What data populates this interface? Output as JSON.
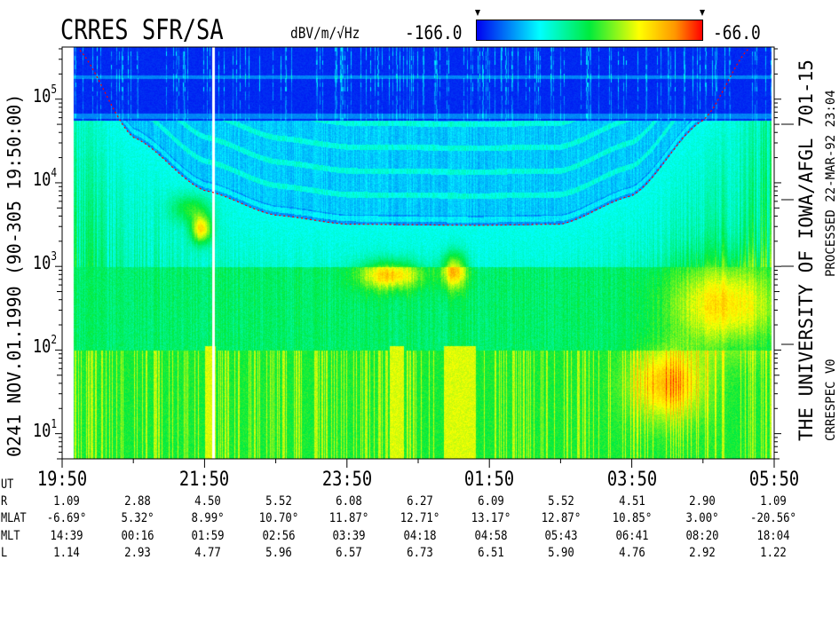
{
  "chart_data": {
    "type": "heatmap",
    "title": "CRRES SFR/SA",
    "colorbar": {
      "units": "dBV/m/√Hz",
      "min_label": "-166.0",
      "max_label": "-66.0",
      "range": [
        -166.0,
        -66.0
      ],
      "colors": [
        "#0000f0",
        "#00ffff",
        "#00eb3c",
        "#ffff00",
        "#ff9600",
        "#ff0000"
      ]
    },
    "y_axis": {
      "scale": "log",
      "range": [
        5,
        420000
      ],
      "ticks": [
        {
          "base": "10",
          "exp": "1",
          "value": 10
        },
        {
          "base": "10",
          "exp": "2",
          "value": 100
        },
        {
          "base": "10",
          "exp": "3",
          "value": 1000
        },
        {
          "base": "10",
          "exp": "4",
          "value": 10000
        },
        {
          "base": "10",
          "exp": "5",
          "value": 100000
        }
      ]
    },
    "x_axis": {
      "range": [
        "19:50",
        "05:50"
      ],
      "tick_labels": [
        "19:50",
        "21:50",
        "23:50",
        "01:50",
        "03:50",
        "05:50"
      ]
    },
    "overlay_curve": {
      "color": "#ff0000",
      "style": "dotted",
      "points": [
        [
          "20:02",
          420000
        ],
        [
          "20:50",
          35000
        ],
        [
          "21:50",
          8100
        ],
        [
          "22:50",
          4100
        ],
        [
          "23:50",
          3200
        ],
        [
          "01:40",
          3100
        ],
        [
          "02:50",
          3200
        ],
        [
          "03:50",
          7000
        ],
        [
          "04:50",
          56000
        ],
        [
          "05:30",
          420000
        ]
      ]
    },
    "left_label": "0241  NOV.01.1990  (90-305 19:50:00)",
    "right_label_main": "THE UNIVERSITY OF IOWA/AFGL 701-15",
    "right_label_processed": "PROCESSED 22-MAR-92  23:04",
    "right_label_version": "CRRESPEC V0",
    "ephemeris": {
      "ut_label": "UT",
      "rows": [
        {
          "label": "R",
          "values": [
            "1.09",
            "2.88",
            "4.50",
            "5.52",
            "6.08",
            "6.27",
            "6.09",
            "5.52",
            "4.51",
            "2.90",
            "1.09"
          ]
        },
        {
          "label": "MLAT",
          "values": [
            "-6.69°",
            "5.32°",
            "8.99°",
            "10.70°",
            "11.87°",
            "12.71°",
            "13.17°",
            "12.87°",
            "10.85°",
            "3.00°",
            "-20.56°"
          ]
        },
        {
          "label": "MLT",
          "values": [
            "14:39",
            "00:16",
            "01:59",
            "02:56",
            "03:39",
            "04:18",
            "04:58",
            "05:43",
            "06:41",
            "08:20",
            "18:04"
          ]
        },
        {
          "label": "L",
          "values": [
            "1.14",
            "2.93",
            "4.77",
            "5.96",
            "6.57",
            "6.73",
            "6.51",
            "5.90",
            "4.76",
            "2.92",
            "1.22"
          ]
        }
      ]
    }
  }
}
